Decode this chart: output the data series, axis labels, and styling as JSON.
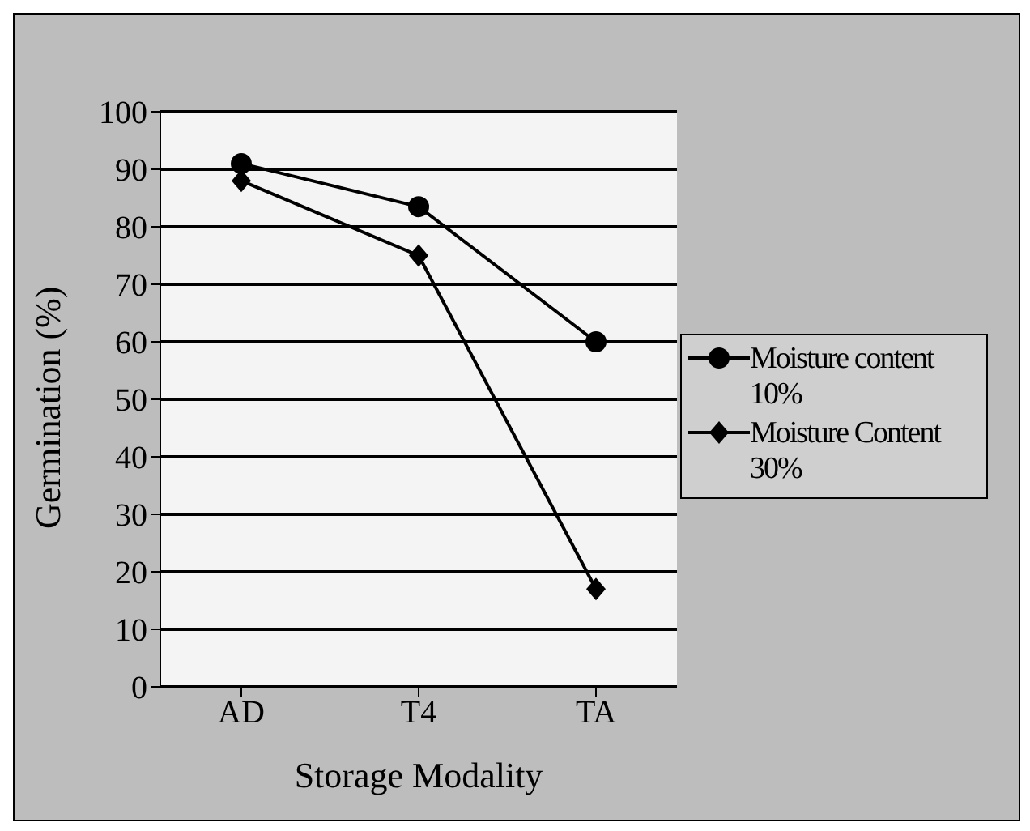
{
  "chart_data": {
    "type": "line",
    "xlabel": "Storage Modality",
    "ylabel": "Germination (%)",
    "categories": [
      "AD",
      "T4",
      "TA"
    ],
    "series": [
      {
        "name": "Moisture content 10%",
        "color": "#000000",
        "marker": "circle",
        "values": [
          91,
          83.5,
          60
        ]
      },
      {
        "name": "Moisture Content 30%",
        "color": "#000000",
        "marker": "diamond",
        "values": [
          88,
          75,
          17
        ]
      }
    ],
    "ylim": [
      0,
      100
    ],
    "yticks": [
      0,
      10,
      20,
      30,
      40,
      50,
      60,
      70,
      80,
      90,
      100
    ],
    "grid": "y",
    "legend": "right"
  }
}
